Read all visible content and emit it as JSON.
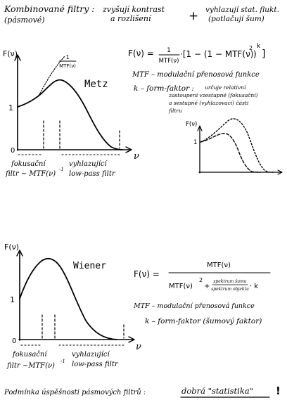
{
  "header": {
    "title": "Kombinované filtry :",
    "subtitle": "(pásmové)",
    "item1_line1": "zvyšují kontrast",
    "item1_line2": "a rozlišení",
    "plus": "+",
    "item2_line1": "vyhlazují stat. flukt.",
    "item2_line2": "(potlačují šum)"
  },
  "metz": {
    "graph": {
      "y_axis": "F(ν)",
      "x_axis": "ν",
      "tick_one": "1",
      "origin": "0",
      "curve_label": "Metz",
      "mtf_num": "1",
      "mtf_den": "MTF(ν)"
    },
    "regions": {
      "left_line1": "fokusační",
      "left_line2": "filtr ~ MTF(ν)",
      "left_exp": "-1",
      "right_line1": "vyhlazující",
      "right_line2": "low-pass filtr"
    },
    "formula": {
      "lhs": "F(ν) =",
      "frac_num": "1",
      "frac_den": "MTF(ν)",
      "body": "·[1 − (1 − MTF(ν)",
      "sq": "2",
      "close": ")",
      "k": "k",
      "end": "]"
    },
    "defs": {
      "mtf": "MTF – modulační přenosová funkce",
      "k_head": "k – form-faktor :",
      "k_1": "určuje relativní",
      "k_2": "zastoupení vzestupné (fokusační)",
      "k_3": "a sestupné (vyhlazovací) části",
      "k_4": "filtru"
    },
    "small_graph": {
      "y_axis": "F(ν)",
      "tick_one": "1"
    }
  },
  "wiener": {
    "graph": {
      "y_axis": "F(ν)",
      "x_axis": "ν",
      "tick_one": "1",
      "origin": "0",
      "curve_label": "Wiener"
    },
    "regions": {
      "left_line1": "fokusační",
      "left_line2": "filtr ~MTF(ν)",
      "left_exp": "-1",
      "right_line1": "vyhlazující",
      "right_line2": "low-pass filtr"
    },
    "formula": {
      "lhs": "F(ν) =",
      "numerator": "MTF(ν)",
      "den_left": "MTF(ν)",
      "den_sq": "2",
      "den_plus": "+",
      "spec_num": "spektrum šumu",
      "spec_den": "spektrum objektu",
      "den_k": "· k"
    },
    "defs": {
      "mtf": "MTF – modulační přenosová funkce",
      "k": "k – form-faktor (šumový faktor)"
    }
  },
  "footer": {
    "lead": "Podmínka úspěšnosti pásmových filtrů :",
    "emph": "dobrá \"statistika\"",
    "bang": "!"
  }
}
